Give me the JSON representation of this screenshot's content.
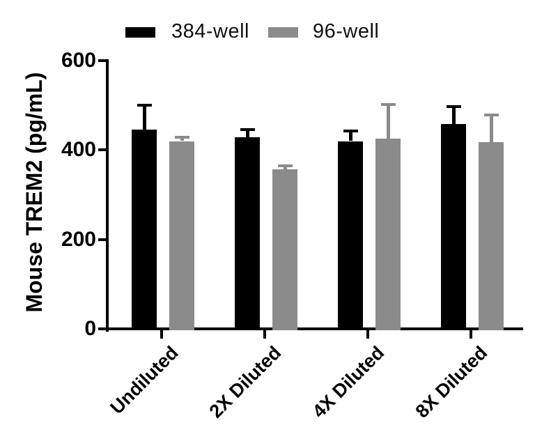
{
  "chart_data": {
    "type": "bar",
    "title": "",
    "xlabel": "",
    "ylabel": "Mouse TREM2 (pg/mL)",
    "categories": [
      "Undiluted",
      "2X Diluted",
      "4X Diluted",
      "8X Diluted"
    ],
    "series": [
      {
        "name": "384-well",
        "color": "#000000",
        "values": [
          445,
          428,
          420,
          458
        ],
        "errors_sd_upper": [
          55,
          17,
          22,
          39
        ]
      },
      {
        "name": "96-well",
        "color": "#8b8b8b",
        "values": [
          420,
          357,
          425,
          418
        ],
        "errors_sd_upper": [
          9,
          7,
          77,
          61
        ]
      }
    ],
    "ylim": [
      0,
      600
    ],
    "yticks": [
      0,
      200,
      400,
      600
    ],
    "grid": false,
    "legend_position": "top",
    "error_bars": "upper-only-with-caps"
  }
}
